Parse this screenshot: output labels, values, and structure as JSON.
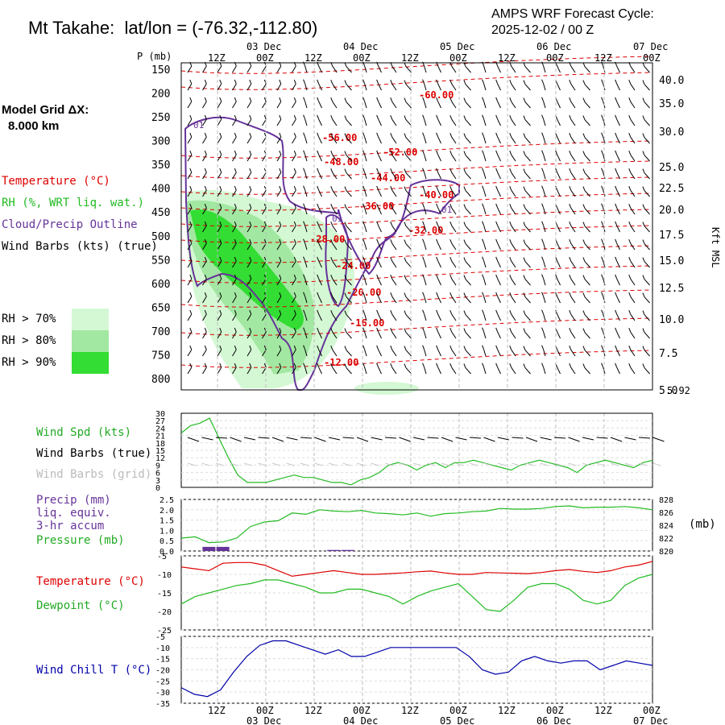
{
  "header": {
    "station_label": "Mt Takahe:",
    "latlon": "lat/lon = (-76.32,-112.80)",
    "cycle_line1": "AMPS WRF Forecast Cycle:",
    "cycle_line2": "2025-12-02 / 00  Z",
    "grid_line1": "Model Grid ΔX:",
    "grid_line2": "8.000 km"
  },
  "legend": {
    "temperature": "Temperature (°C)",
    "rh": "RH (%, WRT liq. wat.)",
    "cloud": "Cloud/Precip Outline",
    "wind_barbs": "Wind Barbs (kts) (true)",
    "rh70": "RH > 70%",
    "rh80": "RH > 80%",
    "rh90": "RH > 90%",
    "colors": {
      "rh70": "#d4f8d4",
      "rh80": "#a2e8a2",
      "rh90": "#33dd33",
      "temperature": "#dd0000",
      "rh": "#22bb22",
      "cloud": "#663399",
      "wind_chill": "#0000aa"
    }
  },
  "time_axis": {
    "top_ticks": [
      "12Z",
      "00Z",
      "12Z",
      "00Z",
      "12Z",
      "00Z",
      "12Z",
      "00Z",
      "12Z",
      "00Z"
    ],
    "date_labels": [
      "03 Dec",
      "04 Dec",
      "05 Dec",
      "06 Dec",
      "07 Dec"
    ]
  },
  "chart_data": [
    {
      "type": "heatmap",
      "name": "cross-section",
      "ylabel": "P (mb)",
      "ylabel_right": "Kft MSL",
      "pressure_ticks": [
        150,
        200,
        250,
        300,
        350,
        400,
        450,
        500,
        550,
        600,
        650,
        700,
        750,
        800
      ],
      "kft_ticks": [
        "40.0",
        "35.0",
        "30.0",
        "25.0",
        "22.5",
        "20.0",
        "17.5",
        "15.0",
        "12.5",
        "10.0",
        "7.5",
        "5.0"
      ],
      "kft_extra": "5.92",
      "temperature_labels": [
        "-60.00",
        "-56.00",
        "-52.00",
        "-48.00",
        "-44.00",
        "-40.00",
        "-36.00",
        "-32.00",
        "-28.00",
        "-24.00",
        "-20.00",
        "-16.00",
        "-12.00"
      ],
      "cloud_labels": [
        "01",
        "01",
        "01"
      ]
    },
    {
      "type": "line",
      "name": "wind-speed",
      "series_label": "Wind Spd (kts)",
      "barb_label": "Wind Barbs (true)",
      "grid_barb_label": "Wind Barbs (grid)",
      "yticks": [
        0,
        3,
        6,
        9,
        12,
        15,
        18,
        21,
        24,
        27,
        30
      ],
      "ylim": [
        0,
        30
      ],
      "values": [
        22,
        25,
        26,
        28,
        20,
        12,
        5,
        2,
        2,
        2,
        3,
        4,
        5,
        4,
        4,
        3,
        2,
        2,
        1,
        3,
        4,
        6,
        9,
        10,
        9,
        7,
        9,
        10,
        8,
        10,
        10,
        11,
        10,
        9,
        8,
        7,
        9,
        10,
        11,
        10,
        9,
        8,
        6,
        9,
        10,
        11,
        10,
        9,
        8,
        10,
        11
      ]
    },
    {
      "type": "line",
      "name": "precip-pressure",
      "precip_label": "Precip (mm)",
      "precip_label2": "liq. equiv.",
      "precip_label3": "3-hr accum",
      "pressure_label": "Pressure (mb)",
      "unit_right": "(mb)",
      "yticks_left": [
        "0.0",
        "0.5",
        "1.0",
        "1.5",
        "2.0",
        "2.5"
      ],
      "yticks_right": [
        "820",
        "822",
        "824",
        "826",
        "828"
      ],
      "ylim_right": [
        820,
        828
      ],
      "pressure_values": [
        822,
        822.2,
        821.3,
        821.4,
        822,
        823.8,
        824.5,
        824.7,
        825.9,
        825.7,
        826.4,
        826.2,
        826.1,
        826.3,
        825.9,
        825.8,
        825.6,
        825.9,
        825.4,
        825.8,
        825.9,
        826.1,
        826.2,
        826.6,
        826.5,
        826.5,
        826.6,
        826.9,
        827,
        826.7,
        826.8,
        826.8,
        826.9,
        826.7,
        826.4
      ],
      "precip_values": [
        0,
        0,
        0.2,
        0.2,
        0,
        0,
        0,
        0,
        0,
        0,
        0,
        0.05,
        0.05,
        0,
        0,
        0,
        0,
        0,
        0,
        0,
        0,
        0,
        0,
        0,
        0,
        0,
        0,
        0,
        0,
        0,
        0,
        0,
        0,
        0,
        0
      ]
    },
    {
      "type": "line",
      "name": "temp-dewpoint",
      "series": [
        {
          "name": "Temperature (°C)",
          "values": [
            -8,
            -8.5,
            -9,
            -7,
            -6.8,
            -6.8,
            -7.5,
            -9,
            -10.5,
            -10,
            -9.5,
            -9,
            -9.5,
            -10,
            -10,
            -9.8,
            -9.6,
            -9.3,
            -9.1,
            -9.6,
            -10,
            -10,
            -9.5,
            -9.6,
            -9.7,
            -9.8,
            -9.5,
            -9,
            -8.7,
            -9.2,
            -9.5,
            -9,
            -8,
            -7.5,
            -6.5
          ]
        },
        {
          "name": "Dewpoint (°C)",
          "values": [
            -18,
            -16,
            -15,
            -14,
            -13,
            -12.5,
            -11.5,
            -11.5,
            -12.5,
            -13.5,
            -15,
            -15,
            -14,
            -14,
            -15,
            -16,
            -18,
            -16,
            -14.5,
            -13.5,
            -12.5,
            -16,
            -19.5,
            -20,
            -17,
            -13.5,
            -12.5,
            -12.5,
            -14,
            -17,
            -18,
            -17,
            -13,
            -11,
            -10
          ]
        }
      ],
      "yticks": [
        -25,
        -20,
        -15,
        -10,
        -5
      ],
      "ylim": [
        -25,
        -5
      ]
    },
    {
      "type": "line",
      "name": "wind-chill",
      "series_label": "Wind Chill T (°C)",
      "yticks": [
        -35,
        -30,
        -25,
        -20,
        -15,
        -10,
        -5
      ],
      "ylim": [
        -35,
        -5
      ],
      "values": [
        -28,
        -31,
        -32,
        -29,
        -21,
        -14,
        -9,
        -7,
        -7,
        -9,
        -11,
        -13,
        -11,
        -14,
        -14,
        -12,
        -10,
        -10,
        -10,
        -10,
        -10,
        -10,
        -14,
        -20,
        -22,
        -21,
        -16,
        -14,
        -16,
        -17,
        -16,
        -16,
        -20,
        -18,
        -16,
        -17,
        -18
      ]
    }
  ]
}
